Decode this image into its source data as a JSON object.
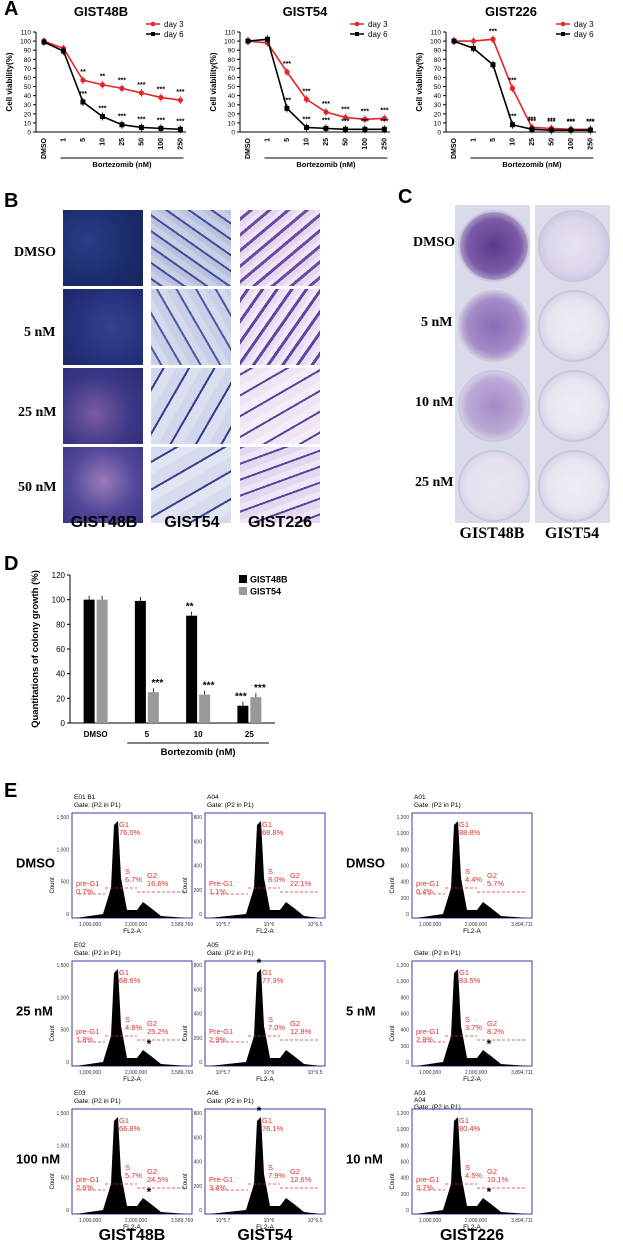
{
  "panel_labels": {
    "a": "A",
    "b": "B",
    "c": "C",
    "d": "D",
    "e": "E"
  },
  "panel_a": {
    "charts": [
      {
        "title": "GIST48B",
        "ylabel": "Cell viability(%)",
        "xlabel": "Bortezomib (nM)",
        "categories": [
          "DMSO",
          "1",
          "5",
          "10",
          "25",
          "50",
          "100",
          "250"
        ],
        "yticks": [
          "0",
          "10",
          "20",
          "30",
          "40",
          "50",
          "60",
          "70",
          "80",
          "90",
          "100",
          "110"
        ],
        "series": [
          {
            "name": "day 3",
            "color": "#e4262b",
            "values": [
              100,
              92,
              57,
              52,
              48,
              43,
              38,
              35
            ],
            "stars": [
              "",
              "",
              "**",
              "**",
              "***",
              "***",
              "***",
              "***"
            ]
          },
          {
            "name": "day 6",
            "color": "#000000",
            "values": [
              99,
              89,
              33,
              17,
              8,
              5,
              4,
              3
            ],
            "stars": [
              "",
              "",
              "***",
              "***",
              "***",
              "***",
              "***",
              "***"
            ]
          }
        ]
      },
      {
        "title": "GIST54",
        "ylabel": "Cell viability(%)",
        "xlabel": "Bortezomib (nM)",
        "categories": [
          "DMSO",
          "1",
          "5",
          "10",
          "25",
          "50",
          "100",
          "250"
        ],
        "yticks": [
          "0",
          "10",
          "20",
          "30",
          "40",
          "50",
          "60",
          "70",
          "80",
          "90",
          "100",
          "110"
        ],
        "series": [
          {
            "name": "day 3",
            "color": "#e4262b",
            "values": [
              100,
              98,
              66,
              36,
              22,
              16,
              14,
              15
            ],
            "stars": [
              "",
              "",
              "***",
              "***",
              "***",
              "***",
              "***",
              "***"
            ]
          },
          {
            "name": "day 6",
            "color": "#000000",
            "values": [
              100,
              102,
              26,
              5,
              4,
              3,
              3,
              3
            ],
            "stars": [
              "",
              "",
              "***",
              "***",
              "***",
              "***",
              "***",
              "***"
            ]
          }
        ]
      },
      {
        "title": "GIST226",
        "ylabel": "Cell viability(%)",
        "xlabel": "Bortezomib (nM)",
        "categories": [
          "DMSO",
          "1",
          "5",
          "10",
          "25",
          "50",
          "100",
          "250"
        ],
        "yticks": [
          "0",
          "10",
          "20",
          "30",
          "40",
          "50",
          "60",
          "70",
          "80",
          "90",
          "100",
          "110"
        ],
        "series": [
          {
            "name": "day 3",
            "color": "#e4262b",
            "values": [
              100,
              100,
              102,
              48,
              5,
              4,
              3,
              3
            ],
            "stars": [
              "",
              "",
              "***",
              "***",
              "***",
              "***",
              "***",
              "***"
            ]
          },
          {
            "name": "day 6",
            "color": "#000000",
            "values": [
              100,
              92,
              74,
              8,
              3,
              2,
              2,
              2
            ],
            "stars": [
              "",
              "",
              "",
              "***",
              "***",
              "***",
              "***",
              "***"
            ]
          }
        ]
      }
    ]
  },
  "panel_b": {
    "row_labels": [
      "DMSO",
      "5 nM",
      "25 nM",
      "50 nM"
    ],
    "col_labels": [
      "GIST48B",
      "GIST54",
      "GIST226"
    ]
  },
  "panel_c": {
    "row_labels": [
      "DMSO",
      "5 nM",
      "10 nM",
      "25 nM"
    ],
    "col_labels": [
      "GIST48B",
      "GIST54"
    ]
  },
  "chart_data": {
    "type": "bar",
    "ylabel": "Quantitations of colony growth (%)",
    "xlabel": "Bortezomib (nM)",
    "categories": [
      "DMSO",
      "5",
      "10",
      "25"
    ],
    "yticks": [
      "0",
      "20",
      "40",
      "60",
      "80",
      "100",
      "120"
    ],
    "ylim": [
      0,
      120
    ],
    "legend_position": "top-right",
    "series": [
      {
        "name": "GIST48B",
        "color": "#000000",
        "values": [
          100,
          99,
          87,
          14
        ],
        "stars": [
          "",
          "",
          "**",
          "***"
        ]
      },
      {
        "name": "GIST54",
        "color": "#999999",
        "values": [
          100,
          25,
          23,
          21
        ],
        "stars": [
          "",
          "***",
          "***",
          "***"
        ]
      }
    ]
  },
  "panel_e": {
    "row_labels_left": [
      "DMSO",
      "25 nM",
      "100 nM"
    ],
    "row_labels_right": [
      "DMSO",
      "5 nM",
      "10 nM"
    ],
    "col_labels": [
      "GIST48B",
      "GIST54",
      "GIST226"
    ],
    "x_axis_label": "FL2-A",
    "y_axis_label": "Count",
    "star": "*",
    "plots": [
      {
        "header": "E01 B1",
        "gate": "Gate: (P2 in P1)",
        "yticks": [
          "1,500",
          "1,000",
          "500",
          "0"
        ],
        "xticks": [
          "1,000,000",
          "2,000,000",
          "3,589,769"
        ],
        "g1": "G1\n76.0%",
        "pre": "pre-G1\n0.7%",
        "s": "S\n6.7%",
        "g2": "G2\n16.6%",
        "star": false
      },
      {
        "header": "A04",
        "gate": "Gate: (P2 in P1)",
        "yticks": [
          "800",
          "600",
          "400",
          "200",
          "0"
        ],
        "xticks": [
          "10^5.7",
          "10^6",
          "10^6.5"
        ],
        "g1": "G1\n68.8%",
        "pre": "Pre-G1\n1.1%",
        "s": "S\n8.0%",
        "g2": "G2\n22.1%",
        "star": false
      },
      {
        "header": "A01",
        "gate": "Gate: (P2 in P1)",
        "yticks": [
          "1,200",
          "1,000",
          "800",
          "600",
          "400",
          "200",
          "0"
        ],
        "xticks": [
          "1,000,000",
          "2,000,000",
          "3,894,711"
        ],
        "g1": "G1\n88.8%",
        "pre": "pre-G1\n0.4%",
        "s": "S\n4.4%",
        "g2": "G2\n5.7%",
        "star": false
      },
      {
        "header": "E02",
        "gate": "Gate: (P2 in P1)",
        "yticks": [
          "1,500",
          "1,000",
          "500",
          "0"
        ],
        "xticks": [
          "1,000,000",
          "2,000,000",
          "3,589,769"
        ],
        "g1": "G1\n68.6%",
        "pre": "pre-G1\n1.8%",
        "s": "S\n4.6%",
        "g2": "G2\n25.2%",
        "star": true
      },
      {
        "header": "A05",
        "gate": "Gate: (P2 in P1)",
        "yticks": [
          "800",
          "600",
          "400",
          "200",
          "0"
        ],
        "xticks": [
          "10^5.7",
          "10^6",
          "10^6.5"
        ],
        "g1": "G1\n77.3%",
        "pre": "Pre-G1\n2.9%",
        "s": "S\n7.0%",
        "g2": "G2\n12.8%",
        "star": true
      },
      {
        "header": "",
        "gate": "Gate: (P2 in P1)",
        "yticks": [
          "1,200",
          "1,000",
          "800",
          "600",
          "400",
          "200",
          "0"
        ],
        "xticks": [
          "1,000,000",
          "2,000,000",
          "3,894,711"
        ],
        "g1": "G1\n83.5%",
        "pre": "pre-G1\n2.8%",
        "s": "S\n3.7%",
        "g2": "G2\n8.2%",
        "star": true
      },
      {
        "header": "E03",
        "gate": "Gate: (P2 in P1)",
        "yticks": [
          "1,500",
          "1,000",
          "500",
          "0"
        ],
        "xticks": [
          "1,000,000",
          "2,000,000",
          "3,589,769"
        ],
        "g1": "G1\n66.8%",
        "pre": "pre-G1\n2.6%",
        "s": "S\n5.7%",
        "g2": "G2\n24.5%",
        "star": true
      },
      {
        "header": "A06",
        "gate": "Gate: (P2 in P1)",
        "yticks": [
          "800",
          "600",
          "400",
          "200",
          "0"
        ],
        "xticks": [
          "10^5.7",
          "10^6",
          "10^6.5"
        ],
        "g1": "G1\n76.1%",
        "pre": "Pre-G1\n3.4%",
        "s": "S\n7.9%",
        "g2": "G2\n12.6%",
        "star": true
      },
      {
        "header": "A03\nA04",
        "gate": "Gate: (P2 in P1)",
        "yticks": [
          "1,200",
          "1,000",
          "800",
          "600",
          "400",
          "200",
          "0"
        ],
        "xticks": [
          "1,000,000",
          "2,000,000",
          "3,894,711"
        ],
        "g1": "G1\n80.4%",
        "pre": "pre-G1\n3.7%",
        "s": "S\n4.5%",
        "g2": "G2\n10.1%",
        "star": true
      }
    ]
  }
}
